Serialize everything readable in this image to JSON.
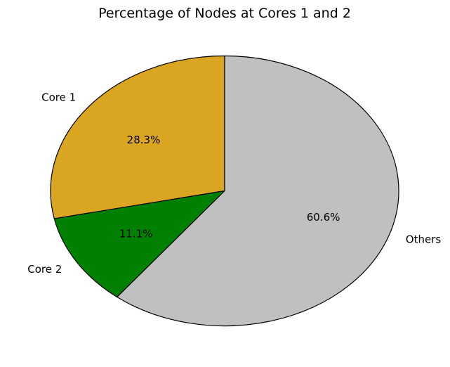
{
  "chart_data": {
    "type": "pie",
    "title": "Percentage of Nodes at Cores 1 and 2",
    "categories": [
      "Core 1",
      "Core 2",
      "Others"
    ],
    "values": [
      28.3,
      11.1,
      60.6
    ],
    "value_labels": [
      "28.3%",
      "11.1%",
      "60.6%"
    ],
    "colors": [
      "#DAA520",
      "#008000",
      "#C0C0C0"
    ],
    "edge_color": "#000000",
    "start_angle_deg": 90,
    "direction": "counterclockwise",
    "legend": false
  }
}
